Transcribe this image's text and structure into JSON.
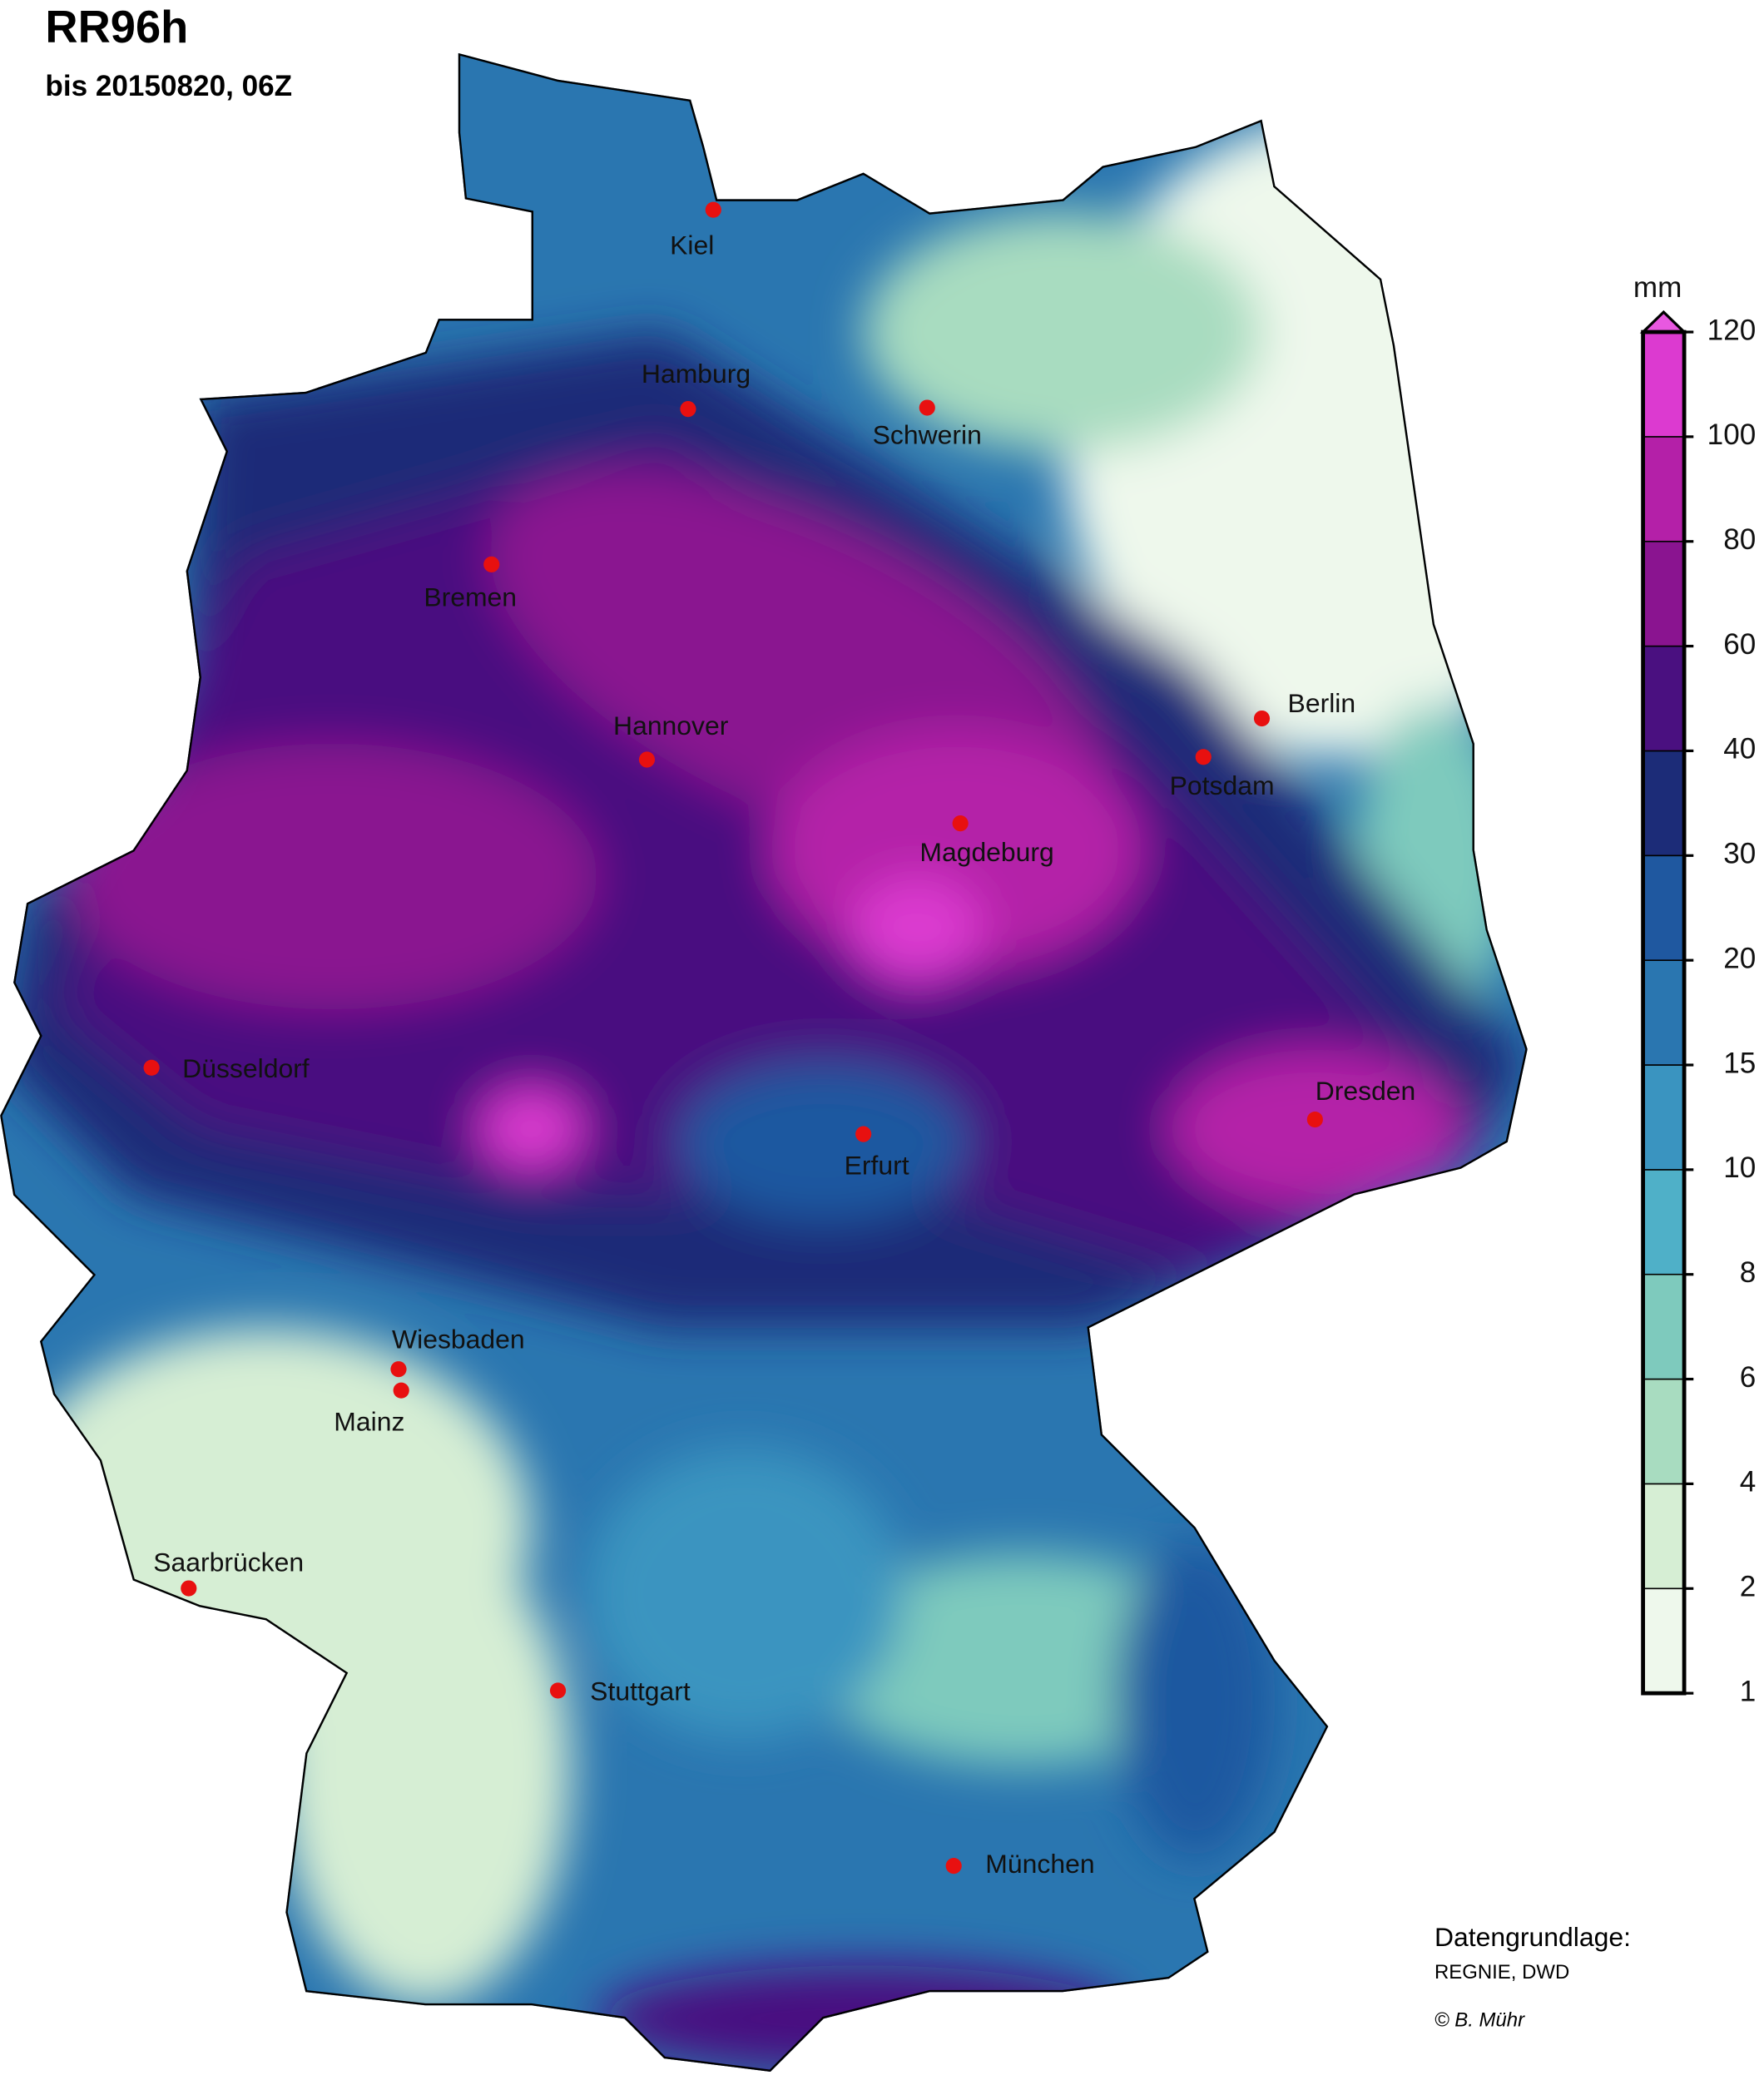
{
  "title": "RR96h",
  "subtitle": "bis 20150820, 06Z",
  "cities": [
    "Kiel",
    "Hamburg",
    "Schwerin",
    "Bremen",
    "Hannover",
    "Berlin",
    "Potsdam",
    "Magdeburg",
    "Düsseldorf",
    "Erfurt",
    "Dresden",
    "Wiesbaden",
    "Mainz",
    "Saarbrücken",
    "Stuttgart",
    "München"
  ],
  "colorbar": {
    "unit": "mm",
    "levels": [
      1,
      2,
      4,
      6,
      8,
      10,
      15,
      20,
      30,
      40,
      60,
      80,
      100,
      120
    ],
    "colors": [
      "#eef8ec",
      "#d6eed4",
      "#a8dcc0",
      "#7ecabd",
      "#4fb0c8",
      "#3a94c0",
      "#2a76b0",
      "#1f58a0",
      "#1c2c78",
      "#4a1080",
      "#8a1490",
      "#b420a8",
      "#dc3ad0"
    ],
    "extend_color": "#e858e0"
  },
  "credits": [
    "Datengrundlage:",
    "REGNIE, DWD",
    "© B. Mühr"
  ]
}
